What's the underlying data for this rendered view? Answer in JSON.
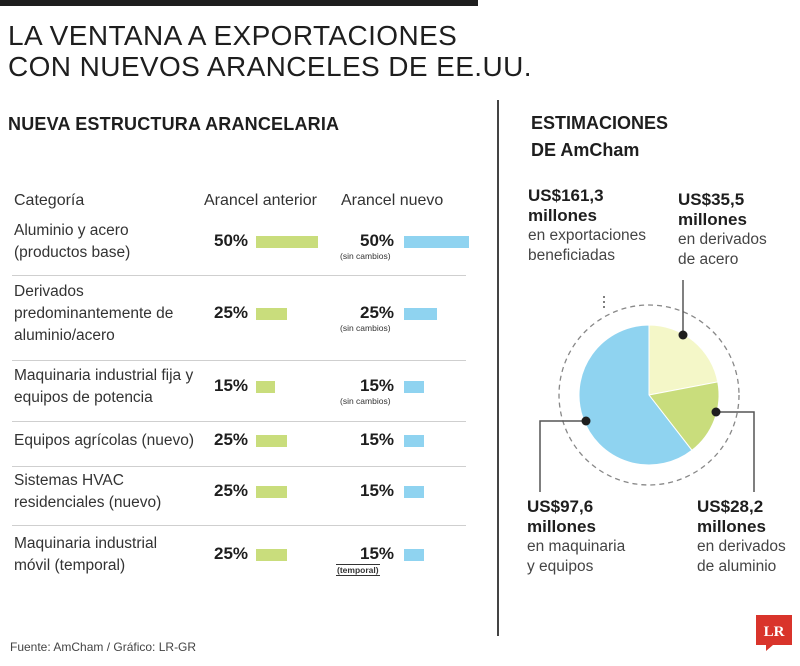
{
  "header": {
    "title_line1": "LA VENTANA A EXPORTACIONES",
    "title_line2": "CON NUEVOS ARANCELES DE EE.UU."
  },
  "table": {
    "title": "NUEVA ESTRUCTURA ARANCELARIA",
    "col_category": "Categoría",
    "col_old": "Arancel anterior",
    "col_new": "Arancel nuevo",
    "rows": [
      {
        "lines": [
          "Aluminio y acero",
          "(productos base)"
        ],
        "old_label": "50%",
        "old": 50,
        "new_label": "50%",
        "new": 50,
        "note": "(sin cambios)"
      },
      {
        "lines": [
          "Derivados",
          "predominantemente de",
          "aluminio/acero"
        ],
        "old_label": "25%",
        "old": 25,
        "new_label": "25%",
        "new": 25,
        "note": "(sin cambios)"
      },
      {
        "lines": [
          "Maquinaria industrial fija y",
          "equipos de potencia"
        ],
        "old_label": "15%",
        "old": 15,
        "new_label": "15%",
        "new": 15,
        "note": "(sin cambios)"
      },
      {
        "lines": [
          "Equipos agrícolas (nuevo)"
        ],
        "old_label": "25%",
        "old": 25,
        "new_label": "15%",
        "new": 15,
        "note": ""
      },
      {
        "lines": [
          "Sistemas HVAC",
          "residenciales (nuevo)"
        ],
        "old_label": "25%",
        "old": 25,
        "new_label": "15%",
        "new": 15,
        "note": ""
      },
      {
        "lines": [
          "Maquinaria industrial",
          "móvil (temporal)"
        ],
        "old_label": "25%",
        "old": 25,
        "new_label": "15%",
        "new": 15,
        "note": "(temporal)"
      }
    ]
  },
  "estimates": {
    "title_line1": "ESTIMACIONES",
    "title_line2": "DE AmCham",
    "total": {
      "amount": "US$161,3",
      "line2": "millones",
      "desc1": "en exportaciones",
      "desc2": "beneficiadas"
    },
    "steel": {
      "amount": "US$35,5",
      "line2": "millones",
      "desc1": "en derivados",
      "desc2": "de acero"
    },
    "aluminum": {
      "amount": "US$28,2",
      "line2": "millones",
      "desc1": "en derivados",
      "desc2": "de aluminio"
    },
    "machinery": {
      "amount": "US$97,6",
      "line2": "millones",
      "desc1": "en maquinaria",
      "desc2": "y equipos"
    }
  },
  "chart_data": [
    {
      "type": "table",
      "title": "NUEVA ESTRUCTURA ARANCELARIA",
      "columns": [
        "Categoría",
        "Arancel anterior",
        "Arancel nuevo"
      ],
      "rows": [
        [
          "Aluminio y acero (productos base)",
          50,
          50
        ],
        [
          "Derivados predominantemente de aluminio/acero",
          25,
          25
        ],
        [
          "Maquinaria industrial fija y equipos de potencia",
          15,
          15
        ],
        [
          "Equipos agrícolas (nuevo)",
          25,
          15
        ],
        [
          "Sistemas HVAC residenciales (nuevo)",
          25,
          15
        ],
        [
          "Maquinaria industrial móvil (temporal)",
          25,
          15
        ]
      ],
      "series_colors": {
        "Arancel anterior": "#c9dd7c",
        "Arancel nuevo": "#8fd3f0"
      }
    },
    {
      "type": "pie",
      "title": "ESTIMACIONES DE AmCham",
      "total": 161.3,
      "slices": [
        {
          "label": "en derivados de acero",
          "value": 35.5,
          "color": "#f4f7c8"
        },
        {
          "label": "en derivados de aluminio",
          "value": 28.2,
          "color": "#c9dd7c"
        },
        {
          "label": "en maquinaria y equipos",
          "value": 97.6,
          "color": "#8fd3f0"
        }
      ]
    }
  ],
  "footer": {
    "source": "Fuente: AmCham / Gráfico: LR-GR",
    "logo_text": "LR",
    "logo_color": "#d9342b"
  }
}
